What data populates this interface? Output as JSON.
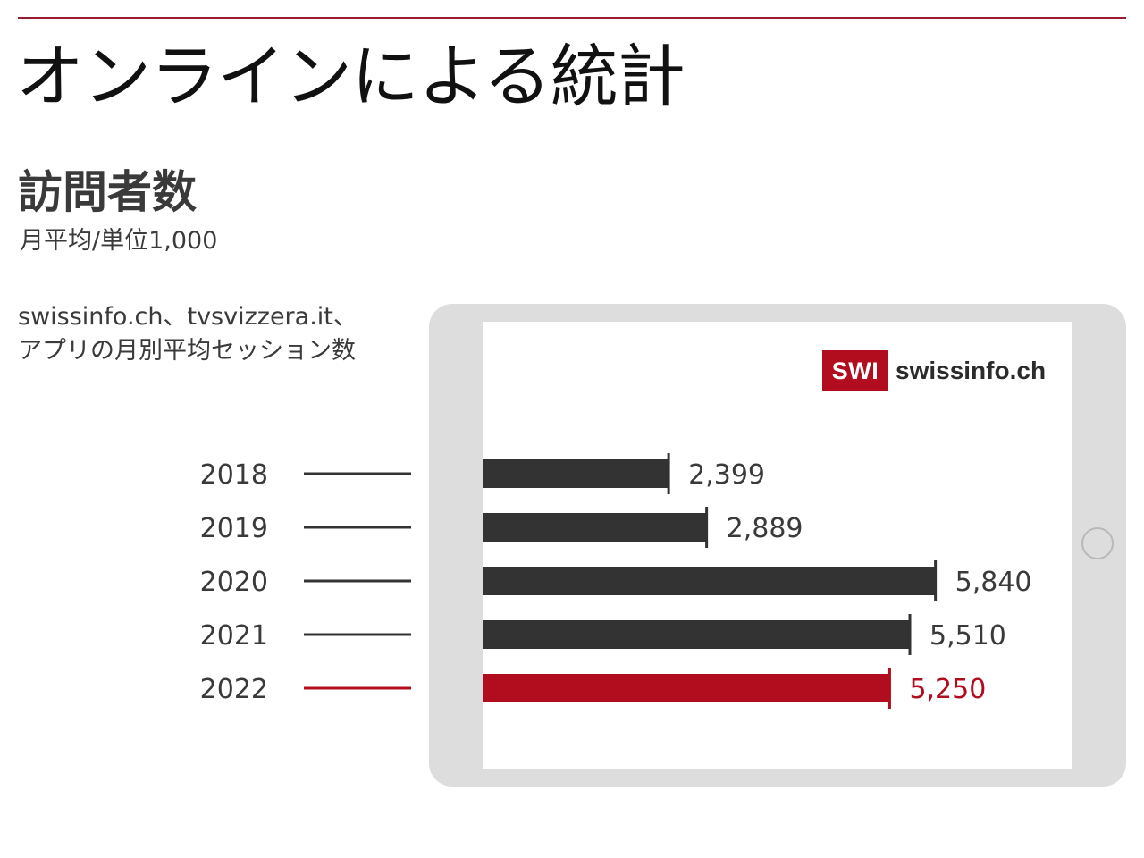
{
  "title": "オンラインによる統計",
  "section": {
    "title": "訪問者数",
    "unit": "月平均/単位1,000"
  },
  "description": {
    "line1": "swissinfo.ch、tvsvizzera.it、",
    "line2": "アプリの月別平均セッション数"
  },
  "brand": {
    "badge": "SWI",
    "name": "swissinfo.ch"
  },
  "colors": {
    "accent": "#b20c1f",
    "bar": "#333333",
    "rule": "#9b1b2e"
  },
  "chart_data": {
    "type": "bar",
    "orientation": "horizontal",
    "categories": [
      "2018",
      "2019",
      "2020",
      "2021",
      "2022"
    ],
    "values": [
      2399,
      2889,
      5840,
      5510,
      5250
    ],
    "value_labels": [
      "2,399",
      "2,889",
      "5,840",
      "5,510",
      "5,250"
    ],
    "highlight_index": 4,
    "title": "",
    "xlabel": "",
    "ylabel": "",
    "xlim": [
      0,
      6000
    ],
    "grid": false,
    "legend": "none"
  }
}
